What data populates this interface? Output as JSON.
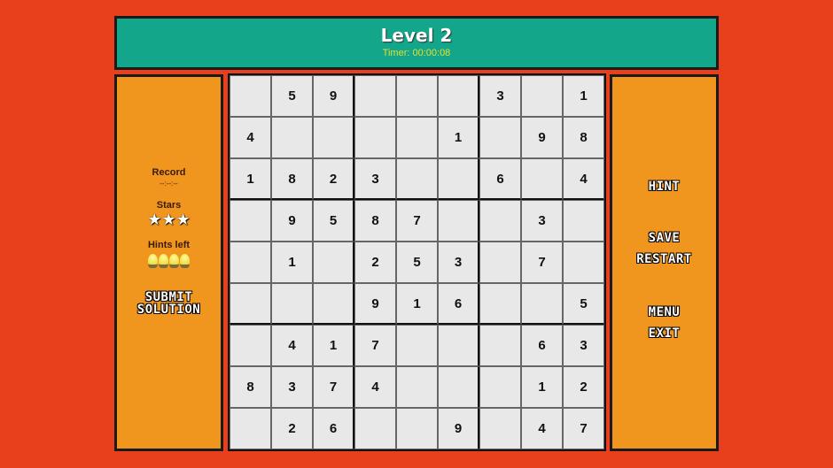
{
  "header": {
    "title": "Level 2",
    "timer": "Timer: 00:00:08"
  },
  "left": {
    "record_label": "Record",
    "record_value": "--:--:--",
    "stars_label": "Stars",
    "stars": 3,
    "stars_max": 3,
    "hints_label": "Hints left",
    "hints_left": 4,
    "submit_line1": "SUBMIT",
    "submit_line2": "SOLUTION"
  },
  "right": {
    "hint": "HINT",
    "save": "SAVE",
    "restart": "RESTART",
    "menu": "MENU",
    "exit": "EXIT"
  },
  "board": [
    [
      "",
      "5",
      "9",
      "",
      "",
      "",
      "3",
      "",
      "1"
    ],
    [
      "4",
      "",
      "",
      "",
      "",
      "1",
      "",
      "9",
      "8"
    ],
    [
      "1",
      "8",
      "2",
      "3",
      "",
      "",
      "6",
      "",
      "4"
    ],
    [
      "",
      "9",
      "5",
      "8",
      "7",
      "",
      "",
      "3",
      ""
    ],
    [
      "",
      "1",
      "",
      "2",
      "5",
      "3",
      "",
      "7",
      ""
    ],
    [
      "",
      "",
      "",
      "9",
      "1",
      "6",
      "",
      "",
      "5"
    ],
    [
      "",
      "4",
      "1",
      "7",
      "",
      "",
      "",
      "6",
      "3"
    ],
    [
      "8",
      "3",
      "7",
      "4",
      "",
      "",
      "",
      "1",
      "2"
    ],
    [
      "",
      "2",
      "6",
      "",
      "",
      "9",
      "",
      "4",
      "7"
    ]
  ],
  "colors": {
    "background": "#e8401c",
    "header": "#14a68a",
    "panel": "#f0951e",
    "timer": "#e6e02a"
  }
}
